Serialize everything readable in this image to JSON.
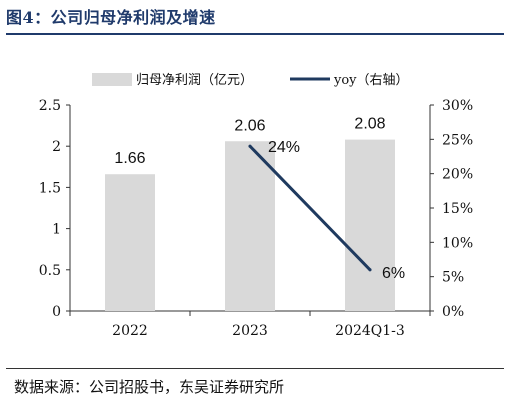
{
  "figure": {
    "title": "图4：公司归母净利润及增速",
    "source": "数据来源：公司招股书，东吴证券研究所"
  },
  "chart_data": {
    "type": "bar",
    "categories": [
      "2022",
      "2023",
      "2024Q1-3"
    ],
    "series": [
      {
        "name": "归母净利润（亿元）",
        "type": "bar",
        "axis": "left",
        "values": [
          1.66,
          2.06,
          2.08
        ],
        "labels": [
          "1.66",
          "2.06",
          "2.08"
        ]
      },
      {
        "name": "yoy（右轴）",
        "type": "line",
        "axis": "right",
        "values": [
          null,
          24,
          6
        ],
        "labels": [
          "",
          "24%",
          "6%"
        ]
      }
    ],
    "y_left": {
      "ylim": [
        0,
        2.5
      ],
      "ticks": [
        "0",
        "0.5",
        "1",
        "1.5",
        "2",
        "2.5"
      ]
    },
    "y_right": {
      "ylim": [
        0,
        30
      ],
      "ticks": [
        "0%",
        "5%",
        "10%",
        "15%",
        "20%",
        "25%",
        "30%"
      ]
    },
    "legend_position": "top",
    "grid": false,
    "colors": {
      "bar": "#d9d9d9",
      "line": "#1f3a5f",
      "axis": "#333333",
      "title": "#1f3a6b"
    }
  }
}
